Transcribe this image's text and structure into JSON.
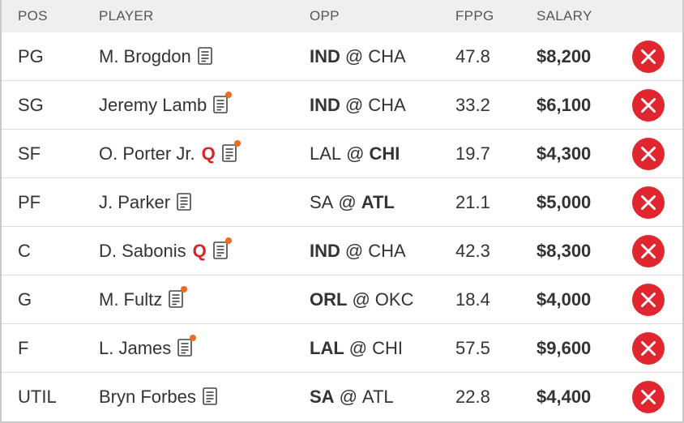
{
  "header": {
    "pos": "POS",
    "player": "PLAYER",
    "opp": "OPP",
    "fppg": "FPPG",
    "salary": "SALARY"
  },
  "colors": {
    "remove": "#e0262e",
    "questionable": "#d8232a",
    "news_dot": "#f26b1d"
  },
  "rows": [
    {
      "pos": "PG",
      "player": "M. Brogdon",
      "status": "",
      "news_alert": false,
      "opp": {
        "away": "IND",
        "home": "CHA",
        "bold": "away"
      },
      "fppg": "47.8",
      "salary": "$8,200"
    },
    {
      "pos": "SG",
      "player": "Jeremy Lamb",
      "status": "",
      "news_alert": true,
      "opp": {
        "away": "IND",
        "home": "CHA",
        "bold": "away"
      },
      "fppg": "33.2",
      "salary": "$6,100"
    },
    {
      "pos": "SF",
      "player": "O. Porter Jr.",
      "status": "Q",
      "news_alert": true,
      "opp": {
        "away": "LAL",
        "home": "CHI",
        "bold": "home"
      },
      "fppg": "19.7",
      "salary": "$4,300"
    },
    {
      "pos": "PF",
      "player": "J. Parker",
      "status": "",
      "news_alert": false,
      "opp": {
        "away": "SA",
        "home": "ATL",
        "bold": "home"
      },
      "fppg": "21.1",
      "salary": "$5,000"
    },
    {
      "pos": "C",
      "player": "D. Sabonis",
      "status": "Q",
      "news_alert": true,
      "opp": {
        "away": "IND",
        "home": "CHA",
        "bold": "away"
      },
      "fppg": "42.3",
      "salary": "$8,300"
    },
    {
      "pos": "G",
      "player": "M. Fultz",
      "status": "",
      "news_alert": true,
      "opp": {
        "away": "ORL",
        "home": "OKC",
        "bold": "away"
      },
      "fppg": "18.4",
      "salary": "$4,000"
    },
    {
      "pos": "F",
      "player": "L. James",
      "status": "",
      "news_alert": true,
      "opp": {
        "away": "LAL",
        "home": "CHI",
        "bold": "away"
      },
      "fppg": "57.5",
      "salary": "$9,600"
    },
    {
      "pos": "UTIL",
      "player": "Bryn Forbes",
      "status": "",
      "news_alert": false,
      "opp": {
        "away": "SA",
        "home": "ATL",
        "bold": "away"
      },
      "fppg": "22.8",
      "salary": "$4,400"
    }
  ],
  "icons": {
    "news": "news-icon",
    "remove": "remove-x-icon"
  },
  "opp_separator": "@"
}
